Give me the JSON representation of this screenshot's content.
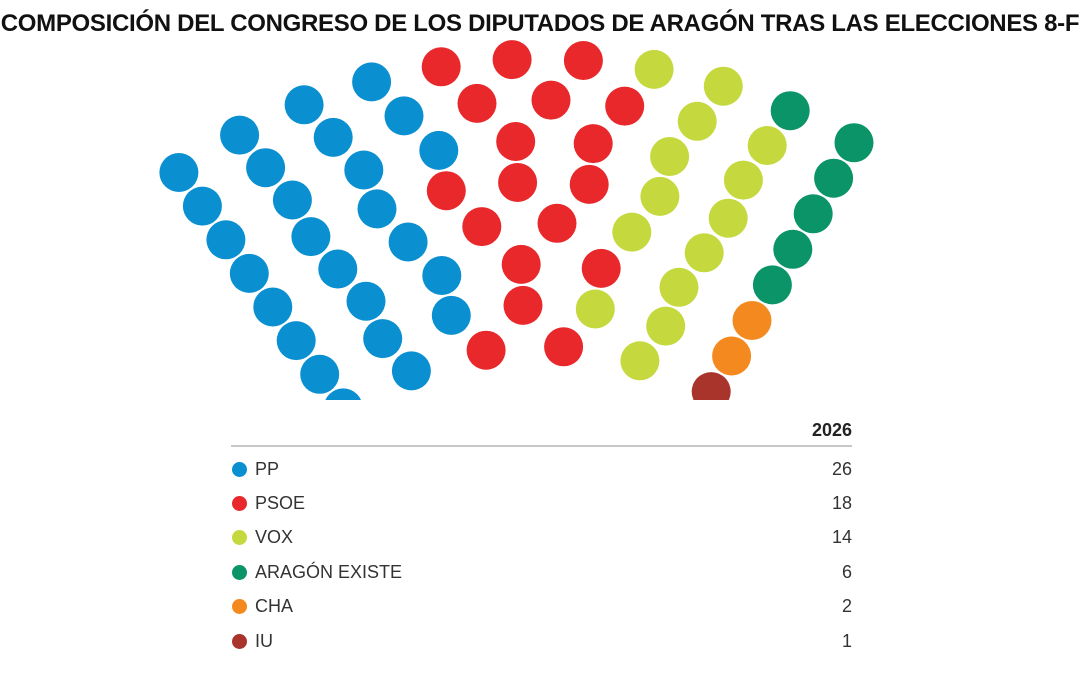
{
  "title": "COMPOSICIÓN DEL CONGRESO DE LOS DIPUTADOS DE ARAGÓN TRAS LAS ELECCIONES 8-F",
  "table_header": "2026",
  "chart_data": {
    "type": "hemicycle",
    "title": "COMPOSICIÓN DEL CONGRESO DE LOS DIPUTADOS DE ARAGÓN TRAS LAS ELECCIONES 8-F",
    "total_seats": 67,
    "series_header": "2026",
    "parties": [
      {
        "name": "PP",
        "seats": 26,
        "color": "#0a8fd1"
      },
      {
        "name": "PSOE",
        "seats": 18,
        "color": "#e8282b"
      },
      {
        "name": "VOX",
        "seats": 14,
        "color": "#c5d93f"
      },
      {
        "name": "ARAGÓN EXISTE",
        "seats": 6,
        "color": "#0a9467"
      },
      {
        "name": "CHA",
        "seats": 2,
        "color": "#f48a1f"
      },
      {
        "name": "IU",
        "seats": 1,
        "color": "#a9342b"
      }
    ]
  }
}
